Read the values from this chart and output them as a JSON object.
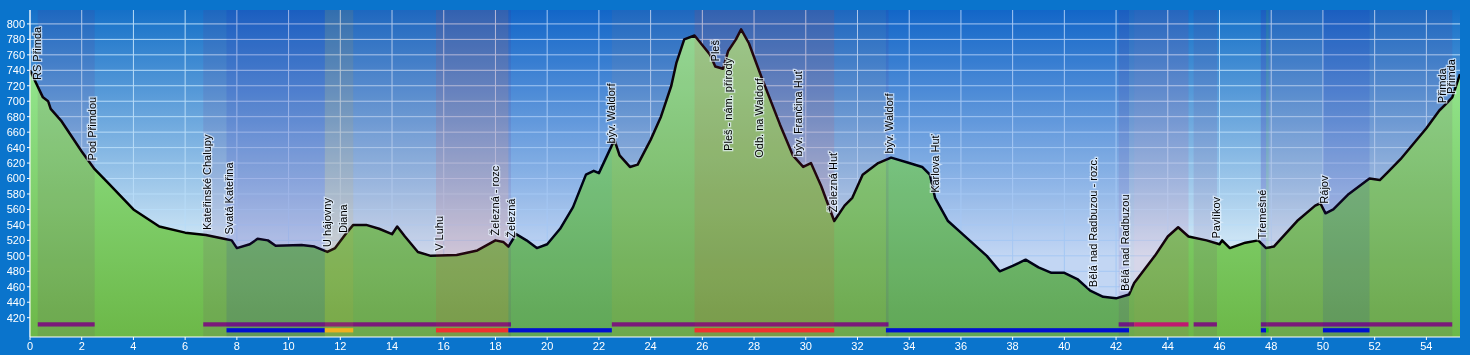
{
  "chart_data": {
    "type": "area",
    "x": [
      0,
      0.5,
      0.7,
      0.8,
      1.2,
      2,
      2.5,
      3,
      4,
      5,
      6,
      6.8,
      7.5,
      7.8,
      8,
      8.5,
      8.8,
      9.2,
      9.5,
      10.5,
      11,
      11.5,
      11.8,
      12.2,
      12.5,
      13,
      13.5,
      14,
      14.2,
      14.5,
      15,
      15.5,
      16.5,
      17.3,
      18,
      18.3,
      18.5,
      18.8,
      19.2,
      19.6,
      20,
      20.5,
      21,
      21.5,
      21.8,
      22,
      22.6,
      22.8,
      23.2,
      23.5,
      24,
      24.4,
      24.8,
      25,
      25.3,
      25.7,
      26.3,
      26.5,
      26.8,
      27,
      27.3,
      27.5,
      27.8,
      28.3,
      29,
      29.5,
      29.9,
      30.2,
      30.6,
      31.1,
      31.5,
      31.8,
      32.2,
      32.8,
      33.3,
      34,
      34.5,
      34.8,
      35,
      35.5,
      36,
      37,
      37.5,
      38,
      38.5,
      39,
      39.5,
      40,
      40.5,
      41,
      41.5,
      42,
      42.5,
      42.7,
      43.5,
      44,
      44.4,
      44.8,
      45.5,
      46,
      46.1,
      46.4,
      47,
      47.5,
      47.8,
      48.1,
      49,
      49.7,
      49.9,
      50.1,
      50.4,
      51,
      51.8,
      52.2,
      52.5,
      53,
      54,
      54.5,
      54.8,
      55,
      55.3
    ],
    "series": [
      {
        "color": "#6cb848",
        "values": [
          740,
          705,
          700,
          690,
          675,
          635,
          612,
          595,
          560,
          538,
          530,
          527,
          522,
          520,
          510,
          515,
          522,
          520,
          513,
          514,
          512,
          505,
          510,
          528,
          540,
          540,
          535,
          528,
          538,
          525,
          505,
          500,
          501,
          507,
          520,
          518,
          512,
          528,
          520,
          510,
          515,
          535,
          563,
          605,
          610,
          607,
          650,
          630,
          615,
          618,
          650,
          680,
          720,
          750,
          780,
          785,
          760,
          745,
          742,
          765,
          780,
          793,
          775,
          730,
          670,
          630,
          615,
          620,
          590,
          545,
          565,
          575,
          605,
          620,
          627,
          620,
          615,
          605,
          575,
          545,
          530,
          500,
          480,
          487,
          495,
          485,
          478,
          478,
          470,
          455,
          447,
          445,
          450,
          465,
          500,
          525,
          537,
          525,
          520,
          515,
          520,
          510,
          517,
          520,
          510,
          512,
          545,
          565,
          568,
          555,
          560,
          580,
          600,
          598,
          608,
          625,
          665,
          688,
          698,
          705,
          735
        ]
      }
    ],
    "xlim": [
      0,
      55.3
    ],
    "ylim": [
      395,
      818
    ],
    "xticks": [
      0,
      2,
      4,
      6,
      8,
      10,
      12,
      14,
      16,
      18,
      20,
      22,
      24,
      26,
      28,
      30,
      32,
      34,
      36,
      38,
      40,
      42,
      44,
      46,
      48,
      50,
      52,
      54
    ],
    "yticks": [
      420,
      440,
      460,
      480,
      500,
      520,
      540,
      560,
      580,
      600,
      620,
      640,
      660,
      680,
      700,
      720,
      740,
      760,
      780,
      800
    ],
    "grid": true,
    "annotations": [
      {
        "text": "RS Přimda",
        "x": 0.27,
        "y": 721
      },
      {
        "text": "Pod Přimdou",
        "x": 2.4,
        "y": 617
      },
      {
        "text": "Kateřinské Chalupy",
        "x": 6.85,
        "y": 527
      },
      {
        "text": "Svatá Kateřina",
        "x": 7.7,
        "y": 521
      },
      {
        "text": "U hájovny",
        "x": 11.5,
        "y": 505
      },
      {
        "text": "Diana",
        "x": 12.1,
        "y": 523
      },
      {
        "text": "V Luhu",
        "x": 15.8,
        "y": 500
      },
      {
        "text": "Železná - rozc",
        "x": 18.0,
        "y": 520
      },
      {
        "text": "Železná",
        "x": 18.6,
        "y": 517
      },
      {
        "text": "býv. Waldorf",
        "x": 22.45,
        "y": 639
      },
      {
        "text": "Pleš",
        "x": 26.5,
        "y": 745
      },
      {
        "text": "Pleš - nám. přírody",
        "x": 27.0,
        "y": 765
      },
      {
        "text": "Odb. na Waldorf",
        "x": 28.2,
        "y": 739
      },
      {
        "text": "býv. Frančina Huť",
        "x": 29.7,
        "y": 622
      },
      {
        "text": "Železná Huť",
        "x": 31.05,
        "y": 550
      },
      {
        "text": "býv. Waldorf",
        "x": 33.2,
        "y": 626
      },
      {
        "text": "Karlova Huť",
        "x": 35.0,
        "y": 575
      },
      {
        "text": "Bělá nad Radbuzou - rozc.",
        "x": 41.1,
        "y": 453
      },
      {
        "text": "Bělá nad Radbuzou",
        "x": 42.35,
        "y": 448
      },
      {
        "text": "Pavlíkov",
        "x": 45.85,
        "y": 516
      },
      {
        "text": "Třemešné",
        "x": 47.65,
        "y": 515
      },
      {
        "text": "Rájov",
        "x": 50.05,
        "y": 561
      },
      {
        "text": "Přimda",
        "x": 54.6,
        "y": 691
      },
      {
        "text": "Přimda",
        "x": 54.95,
        "y": 703
      }
    ],
    "bands": [
      {
        "axis": "x",
        "from": 0.3,
        "to": 2.5,
        "color": "#7a1a7a"
      },
      {
        "axis": "x",
        "from": 6.7,
        "to": 18.6,
        "color": "#7a1a7a"
      },
      {
        "axis": "x",
        "from": 22.5,
        "to": 33.2,
        "color": "#7a1a7a"
      },
      {
        "axis": "x",
        "from": 42.1,
        "to": 42.7,
        "color": "#7a1a7a"
      },
      {
        "axis": "x",
        "from": 42.7,
        "to": 44.8,
        "color": "#c01870"
      },
      {
        "axis": "x",
        "from": 45.0,
        "to": 45.9,
        "color": "#7a1a7a"
      },
      {
        "axis": "x",
        "from": 47.6,
        "to": 55.0,
        "color": "#7a1a7a"
      },
      {
        "axis": "x",
        "from": 7.6,
        "to": 11.4,
        "color": "#0010d0"
      },
      {
        "axis": "x",
        "from": 11.4,
        "to": 12.5,
        "color": "#f0b020"
      },
      {
        "axis": "x",
        "from": 15.7,
        "to": 18.5,
        "color": "#f03030"
      },
      {
        "axis": "x",
        "from": 18.5,
        "to": 22.5,
        "color": "#0010d0"
      },
      {
        "axis": "x",
        "from": 25.7,
        "to": 31.1,
        "color": "#f03030"
      },
      {
        "axis": "x",
        "from": 33.1,
        "to": 42.5,
        "color": "#0010d0"
      },
      {
        "axis": "x",
        "from": 47.6,
        "to": 47.8,
        "color": "#0010d0"
      },
      {
        "axis": "x",
        "from": 47.8,
        "to": 47.9,
        "color": "#20c020"
      },
      {
        "axis": "x",
        "from": 50.0,
        "to": 51.8,
        "color": "#0010d0"
      }
    ]
  }
}
